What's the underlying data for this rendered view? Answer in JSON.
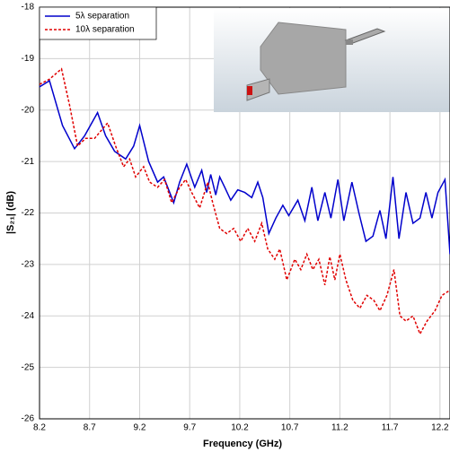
{
  "chart_data": {
    "type": "line",
    "xlabel": "Frequency (GHz)",
    "ylabel": "|S₂₁| (dB)",
    "xlim": [
      8.2,
      12.3
    ],
    "ylim": [
      -26,
      -18
    ],
    "xticks": [
      8.2,
      8.7,
      9.2,
      9.7,
      10.2,
      10.7,
      11.2,
      11.7,
      12.2
    ],
    "yticks": [
      -18,
      -19,
      -20,
      -21,
      -22,
      -23,
      -24,
      -25,
      -26
    ],
    "grid": true,
    "legend": "upper left",
    "series": [
      {
        "name": "5λ separation",
        "color": "#0000cc",
        "dash": false,
        "x": [
          8.2,
          8.3,
          8.43,
          8.55,
          8.65,
          8.78,
          8.86,
          8.95,
          9.06,
          9.14,
          9.2,
          9.29,
          9.38,
          9.44,
          9.54,
          9.6,
          9.67,
          9.75,
          9.82,
          9.87,
          9.91,
          9.96,
          10.0,
          10.05,
          10.11,
          10.18,
          10.25,
          10.32,
          10.38,
          10.43,
          10.49,
          10.56,
          10.63,
          10.69,
          10.78,
          10.85,
          10.92,
          10.98,
          11.05,
          11.11,
          11.18,
          11.24,
          11.32,
          11.39,
          11.46,
          11.53,
          11.6,
          11.66,
          11.73,
          11.79,
          11.86,
          11.93,
          12.0,
          12.06,
          12.12,
          12.18,
          12.25,
          12.3
        ],
        "values": [
          -19.55,
          -19.43,
          -20.3,
          -20.75,
          -20.5,
          -20.05,
          -20.5,
          -20.8,
          -20.95,
          -20.7,
          -20.3,
          -21.0,
          -21.4,
          -21.3,
          -21.8,
          -21.4,
          -21.05,
          -21.5,
          -21.17,
          -21.6,
          -21.25,
          -21.65,
          -21.3,
          -21.5,
          -21.75,
          -21.55,
          -21.6,
          -21.7,
          -21.4,
          -21.7,
          -22.4,
          -22.1,
          -21.85,
          -22.05,
          -21.75,
          -22.15,
          -21.5,
          -22.15,
          -21.6,
          -22.1,
          -21.35,
          -22.15,
          -21.4,
          -22.0,
          -22.55,
          -22.45,
          -21.95,
          -22.5,
          -21.3,
          -22.5,
          -21.6,
          -22.2,
          -22.1,
          -21.6,
          -22.1,
          -21.6,
          -21.35,
          -22.8
        ]
      },
      {
        "name": "10λ separation",
        "color": "#e00000",
        "dash": true,
        "x": [
          8.2,
          8.3,
          8.42,
          8.5,
          8.58,
          8.66,
          8.75,
          8.88,
          8.96,
          9.04,
          9.1,
          9.16,
          9.24,
          9.3,
          9.38,
          9.45,
          9.52,
          9.6,
          9.66,
          9.72,
          9.8,
          9.88,
          9.93,
          10.0,
          10.07,
          10.14,
          10.21,
          10.28,
          10.35,
          10.42,
          10.48,
          10.55,
          10.6,
          10.67,
          10.75,
          10.81,
          10.87,
          10.93,
          10.99,
          11.05,
          11.1,
          11.15,
          11.2,
          11.26,
          11.33,
          11.4,
          11.47,
          11.54,
          11.6,
          11.67,
          11.74,
          11.8,
          11.86,
          11.93,
          12.0,
          12.07,
          12.15,
          12.22,
          12.3
        ],
        "values": [
          -19.5,
          -19.4,
          -19.2,
          -19.9,
          -20.7,
          -20.55,
          -20.55,
          -20.25,
          -20.7,
          -21.1,
          -20.95,
          -21.3,
          -21.1,
          -21.4,
          -21.5,
          -21.35,
          -21.8,
          -21.5,
          -21.35,
          -21.6,
          -21.9,
          -21.4,
          -21.8,
          -22.3,
          -22.4,
          -22.3,
          -22.55,
          -22.3,
          -22.55,
          -22.2,
          -22.7,
          -22.9,
          -22.7,
          -23.3,
          -22.9,
          -23.1,
          -22.8,
          -23.1,
          -22.9,
          -23.4,
          -22.85,
          -23.3,
          -22.8,
          -23.3,
          -23.7,
          -23.85,
          -23.6,
          -23.7,
          -23.9,
          -23.6,
          -23.1,
          -24.0,
          -24.1,
          -24.0,
          -24.35,
          -24.1,
          -23.9,
          -23.6,
          -23.5
        ]
      }
    ]
  }
}
